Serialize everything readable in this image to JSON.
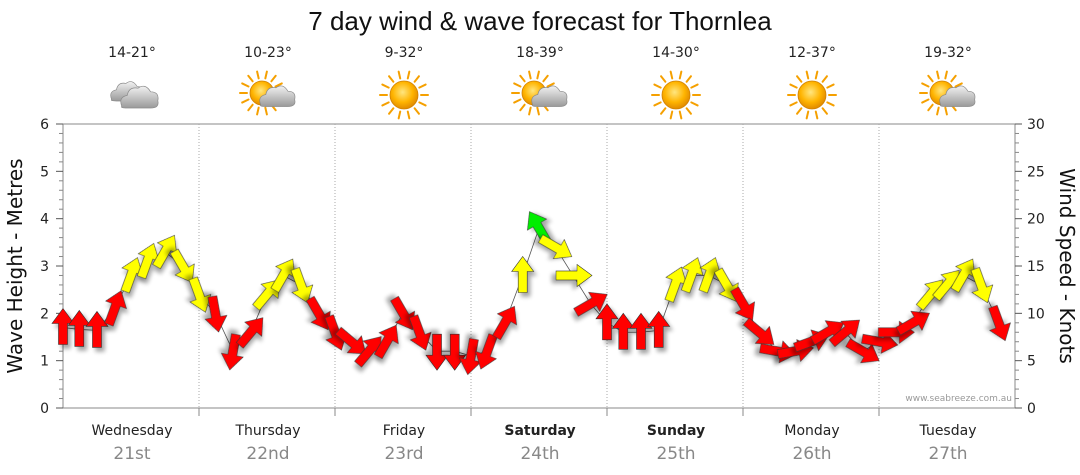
{
  "chart_data": {
    "type": "line",
    "title": "7 day wind & wave forecast for Thornlea",
    "ylabel_left": "Wave Height - Metres",
    "ylabel_right": "Wind Speed - Knots",
    "ylim_left": [
      0,
      6
    ],
    "ylim_right": [
      0,
      30
    ],
    "yticks_left": [
      "0",
      "1",
      "2",
      "3",
      "4",
      "5",
      "6"
    ],
    "yticks_right": [
      "0",
      "5",
      "10",
      "15",
      "20",
      "25",
      "30"
    ],
    "credit": "www.seabreeze.com.au",
    "days": [
      {
        "name": "Wednesday",
        "date": "21st",
        "bold": false,
        "temp": "14-21°",
        "weather": "cloudy"
      },
      {
        "name": "Thursday",
        "date": "22nd",
        "bold": false,
        "temp": "10-23°",
        "weather": "partly-cloudy"
      },
      {
        "name": "Friday",
        "date": "23rd",
        "bold": false,
        "temp": "9-32°",
        "weather": "sunny"
      },
      {
        "name": "Saturday",
        "date": "24th",
        "bold": true,
        "temp": "18-39°",
        "weather": "partly-cloudy"
      },
      {
        "name": "Sunday",
        "date": "25th",
        "bold": true,
        "temp": "14-30°",
        "weather": "sunny"
      },
      {
        "name": "Monday",
        "date": "26th",
        "bold": false,
        "temp": "12-37°",
        "weather": "sunny"
      },
      {
        "name": "Tuesday",
        "date": "27th",
        "bold": false,
        "temp": "19-32°",
        "weather": "partly-cloudy"
      }
    ],
    "wind_legend": {
      "low": "#ff0000",
      "medium": "#ffff00",
      "high": "#00ee00"
    },
    "series": [
      {
        "name": "wind",
        "x_days": [
          0.0,
          0.12,
          0.25,
          0.38,
          0.5,
          0.62,
          0.75,
          0.88,
          1.0,
          1.12,
          1.25,
          1.38,
          1.5,
          1.62,
          1.75,
          1.88,
          2.0,
          2.12,
          2.25,
          2.38,
          2.5,
          2.62,
          2.75,
          2.88,
          3.0,
          3.12,
          3.25,
          3.38,
          3.5,
          3.62,
          3.75,
          3.88,
          4.0,
          4.12,
          4.25,
          4.38,
          4.5,
          4.62,
          4.75,
          4.88,
          5.0,
          5.12,
          5.25,
          5.38,
          5.5,
          5.62,
          5.75,
          5.88,
          6.0,
          6.12,
          6.25,
          6.38,
          6.5,
          6.62,
          6.75,
          6.88
        ],
        "knots": [
          8.5,
          8.3,
          8.2,
          10.5,
          14,
          15.5,
          16.5,
          15,
          12,
          10,
          6,
          8,
          12,
          14,
          13,
          10,
          8,
          7,
          6,
          7,
          10,
          8,
          6,
          6,
          5.5,
          6,
          9,
          14,
          19,
          17,
          14,
          11,
          9,
          8,
          8,
          8.2,
          13,
          14,
          14,
          13,
          11,
          8,
          6,
          6,
          7,
          8,
          8,
          6,
          7,
          8,
          9,
          12,
          13,
          14,
          13,
          9
        ],
        "bearing": [
          0,
          0,
          0,
          20,
          20,
          20,
          30,
          150,
          160,
          170,
          190,
          40,
          40,
          30,
          160,
          150,
          160,
          130,
          40,
          30,
          150,
          160,
          180,
          180,
          190,
          200,
          30,
          0,
          330,
          120,
          90,
          60,
          0,
          0,
          0,
          0,
          20,
          20,
          20,
          150,
          150,
          130,
          100,
          80,
          70,
          60,
          50,
          120,
          100,
          90,
          60,
          40,
          40,
          30,
          160,
          160
        ]
      }
    ]
  }
}
